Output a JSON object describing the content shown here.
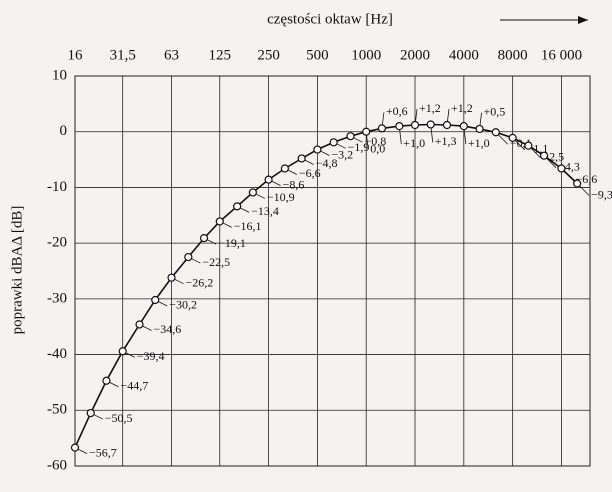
{
  "chart_data": {
    "type": "line",
    "x_label": "częstości oktaw [Hz]",
    "y_label": "poprawki dBAΔ [dB]",
    "log_x": true,
    "grid": true,
    "color": "#111111",
    "x": [
      16,
      20,
      25,
      31.5,
      40,
      50,
      63,
      80,
      100,
      125,
      160,
      200,
      250,
      315,
      400,
      500,
      630,
      800,
      1000,
      1250,
      1600,
      2000,
      2500,
      3150,
      4000,
      5000,
      6300,
      8000,
      10000,
      12500,
      16000,
      20000
    ],
    "values": [
      -56.7,
      -50.5,
      -44.7,
      -39.4,
      -34.6,
      -30.2,
      -26.2,
      -22.5,
      -19.1,
      -16.1,
      -13.4,
      -10.9,
      -8.6,
      -6.6,
      -4.8,
      -3.2,
      -1.9,
      -0.8,
      0.0,
      0.6,
      1.0,
      1.2,
      1.3,
      1.2,
      1.0,
      0.5,
      -0.1,
      -1.1,
      -2.5,
      -4.3,
      -6.6,
      -9.3
    ],
    "value_labels": [
      "−56,7",
      "−50,5",
      "−44,7",
      "−39,4",
      "−34,6",
      "−30,2",
      "−26,2",
      "−22,5",
      "−19,1",
      "−16,1",
      "−13,4",
      "−10,9",
      "−8,6",
      "−6,6",
      "−4,8",
      "−3,2",
      "−1,9",
      "−0,8",
      "0,0",
      "+0,6",
      "+1,0",
      "+1,2",
      "+1,3",
      "+1,2",
      "+1,0",
      "+0,5",
      "−0,1",
      "−1,1",
      "−2,5",
      "−4,3",
      "−6,6",
      "−9,3"
    ],
    "xlim": [
      16,
      24000
    ],
    "xticks": [
      16,
      {
        "value": 31.5,
        "label": "31,5"
      },
      63,
      125,
      250,
      500,
      1000,
      2000,
      4000,
      8000,
      {
        "value": 16000,
        "label": "16 000"
      }
    ],
    "ylim": [
      -60,
      10
    ],
    "yticks": [
      10,
      0,
      -10,
      -20,
      -30,
      -40,
      -50,
      -60
    ]
  }
}
